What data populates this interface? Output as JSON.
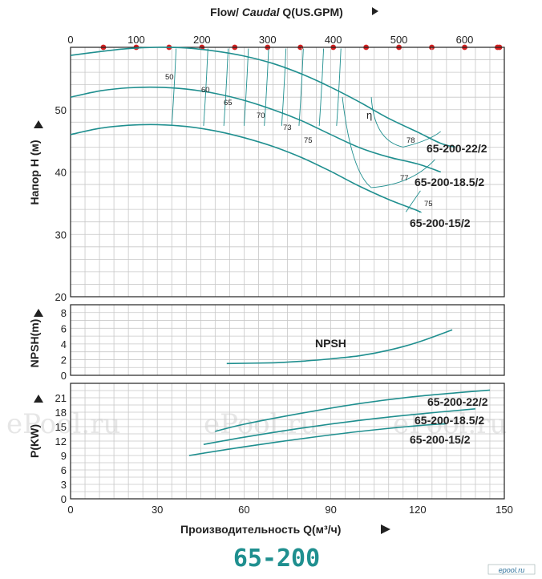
{
  "chart_data": {
    "type": "line",
    "model_title": "65-200",
    "top_axis": {
      "title_prefix": "Flow/ ",
      "title_italic": "Caudal",
      "title_suffix": " Q(US.GPM)",
      "ticks": [
        0,
        100,
        200,
        300,
        400,
        500,
        600
      ]
    },
    "x_axis": {
      "title": "Производительность Q(м³/ч)",
      "range": [
        0,
        150
      ],
      "ticks": [
        0,
        30,
        60,
        90,
        120,
        150
      ]
    },
    "panels": [
      {
        "id": "head",
        "ylabel": "Напор Н (м)",
        "ylim": [
          20,
          60
        ],
        "ticks": [
          20,
          30,
          40,
          50
        ],
        "series": [
          {
            "name": "65-200-22/2",
            "x": [
              0,
              10,
              20,
              30,
              40,
              50,
              60,
              70,
              80,
              90,
              100,
              110,
              120,
              128,
              133
            ],
            "y": [
              58.7,
              59.3,
              59.8,
              60.0,
              59.9,
              59.4,
              58.6,
              57.4,
              55.7,
              53.6,
              51.2,
              48.6,
              46.4,
              44.6,
              44.0
            ]
          },
          {
            "name": "65-200-18.5/2",
            "x": [
              0,
              10,
              20,
              30,
              40,
              50,
              60,
              70,
              80,
              90,
              100,
              110,
              120,
              128
            ],
            "y": [
              52.0,
              53.0,
              53.5,
              53.6,
              53.3,
              52.6,
              51.5,
              50.0,
              48.2,
              46.0,
              43.9,
              42.4,
              41.3,
              40.0
            ]
          },
          {
            "name": "65-200-15/2",
            "x": [
              0,
              10,
              20,
              30,
              40,
              50,
              60,
              70,
              80,
              90,
              100,
              110,
              120,
              121
            ],
            "y": [
              46.0,
              47.0,
              47.5,
              47.6,
              47.3,
              46.6,
              45.5,
              44.1,
              42.3,
              40.1,
              37.7,
              35.6,
              33.8,
              33.5
            ]
          }
        ],
        "efficiency_labels": [
          "50",
          "60",
          "65",
          "70",
          "73",
          "75",
          "78",
          "77",
          "75"
        ],
        "efficiency_symbol": "η"
      },
      {
        "id": "npsh",
        "ylabel": "NPSH(m)",
        "ylim": [
          0,
          9
        ],
        "ticks": [
          0,
          2,
          4,
          6,
          8
        ],
        "series": [
          {
            "name": "NPSH",
            "x": [
              54,
              70,
              80,
              90,
              100,
              110,
              120,
              132
            ],
            "y": [
              1.5,
              1.6,
              1.8,
              2.1,
              2.5,
              3.2,
              4.2,
              5.8
            ]
          }
        ]
      },
      {
        "id": "power",
        "ylabel": "P(KW)",
        "ylim": [
          0,
          24
        ],
        "ticks": [
          0,
          3,
          6,
          9,
          12,
          15,
          18,
          21
        ],
        "series": [
          {
            "name": "65-200-22/2",
            "x": [
              50,
              60,
              80,
              100,
              120,
              145
            ],
            "y": [
              14.0,
              15.5,
              17.8,
              19.8,
              21.3,
              22.6
            ]
          },
          {
            "name": "65-200-18.5/2",
            "x": [
              46,
              60,
              80,
              100,
              120,
              140
            ],
            "y": [
              11.3,
              12.8,
              14.7,
              16.3,
              17.6,
              18.7
            ]
          },
          {
            "name": "65-200-15/2",
            "x": [
              41,
              60,
              80,
              100,
              120,
              130
            ],
            "y": [
              9.0,
              10.8,
              12.5,
              14.0,
              15.2,
              15.6
            ]
          }
        ]
      }
    ],
    "grid": true,
    "colors": {
      "curve": "#1f8f8f",
      "grid": "#c8c8c8",
      "frame": "#222222",
      "marker": "#d42020",
      "title": "#1f8f8f"
    },
    "watermark": "ePool.ru",
    "logo": "epool.ru"
  }
}
